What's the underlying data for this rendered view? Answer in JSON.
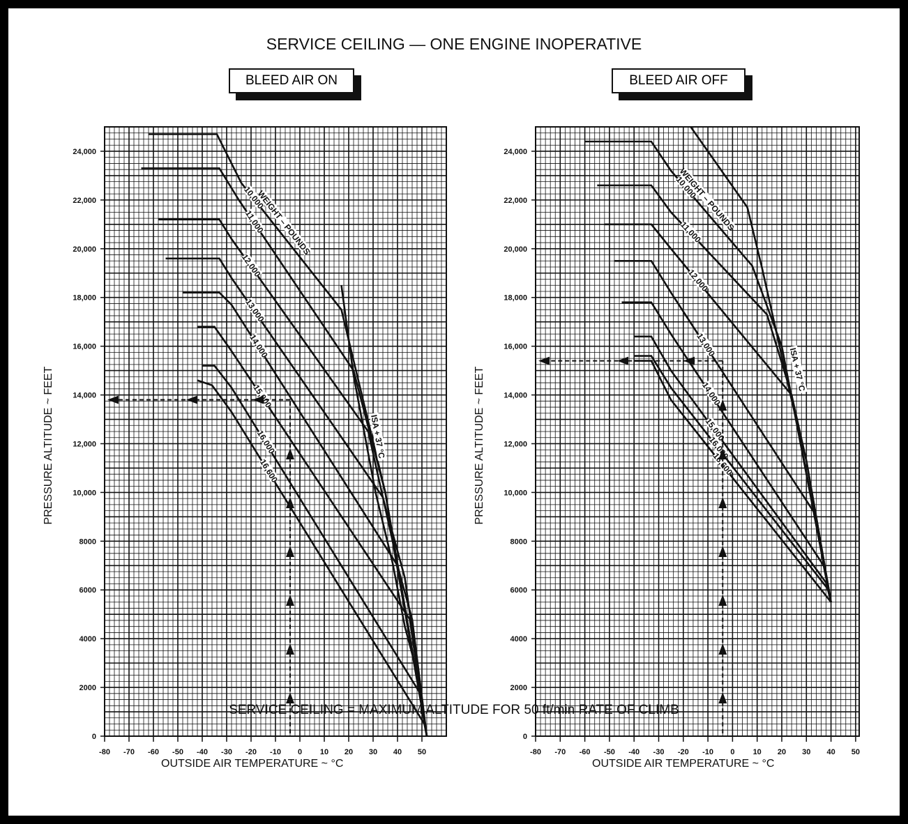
{
  "title": "SERVICE CEILING — ONE ENGINE INOPERATIVE",
  "footer_note": "SERVICE CEILING = MAXIMUM ALTITUDE FOR 50 ft/min RATE OF CLIMB",
  "colors": {
    "background": "#000000",
    "panel": "#ffffff",
    "ink": "#111111"
  },
  "chart_data": [
    {
      "type": "line",
      "title": "BLEED AIR ON",
      "xlabel": "OUTSIDE AIR TEMPERATURE ~ °C",
      "ylabel": "PRESSURE ALTITUDE ~ FEET",
      "xlim": [
        -80,
        60
      ],
      "ylim": [
        0,
        25000
      ],
      "x_ticks": [
        "-80",
        "-70",
        "-60",
        "-50",
        "-40",
        "-30",
        "-20",
        "-10",
        "0",
        "10",
        "20",
        "30",
        "40",
        "50"
      ],
      "y_ticks": [
        "0",
        "2000",
        "4000",
        "6000",
        "8000",
        "10,000",
        "12,000",
        "14,000",
        "16,000",
        "18,000",
        "20,000",
        "22,000",
        "24,000"
      ],
      "grid": true,
      "annotations": [
        "WEIGHT – POUNDS",
        "ISA + 37 °C"
      ],
      "series": [
        {
          "name": "10,000",
          "points": [
            [
              -62,
              24700
            ],
            [
              -34,
              24700
            ],
            [
              -24,
              22700
            ],
            [
              17,
              17500
            ],
            [
              35,
              10000
            ],
            [
              52,
              0
            ]
          ]
        },
        {
          "name": "11,000",
          "points": [
            [
              -65,
              23300
            ],
            [
              -33,
              23300
            ],
            [
              -25,
              22000
            ],
            [
              22,
              15000
            ],
            [
              35,
              10000
            ],
            [
              52,
              0
            ]
          ]
        },
        {
          "name": "12,000",
          "points": [
            [
              -58,
              21200
            ],
            [
              -33,
              21200
            ],
            [
              -28,
              20400
            ],
            [
              28,
              12500
            ],
            [
              38,
              8000
            ],
            [
              52,
              0
            ]
          ]
        },
        {
          "name": "13,000",
          "points": [
            [
              -55,
              19600
            ],
            [
              -33,
              19600
            ],
            [
              -28,
              18800
            ],
            [
              34,
              9800
            ],
            [
              43,
              6500
            ],
            [
              52,
              0
            ]
          ]
        },
        {
          "name": "14,000",
          "points": [
            [
              -48,
              18200
            ],
            [
              -33,
              18200
            ],
            [
              -28,
              17700
            ],
            [
              40,
              7000
            ],
            [
              46,
              4800
            ],
            [
              52,
              0
            ]
          ]
        },
        {
          "name": "15,000",
          "points": [
            [
              -42,
              16800
            ],
            [
              -35,
              16800
            ],
            [
              -28,
              15800
            ],
            [
              45,
              4800
            ],
            [
              52,
              0
            ]
          ]
        },
        {
          "name": "16,000",
          "points": [
            [
              -40,
              15200
            ],
            [
              -35,
              15200
            ],
            [
              -28,
              14300
            ],
            [
              49,
              1800
            ],
            [
              52,
              0
            ]
          ]
        },
        {
          "name": "16,600",
          "points": [
            [
              -42,
              14600
            ],
            [
              -36,
              14400
            ],
            [
              -28,
              13300
            ],
            [
              51,
              500
            ],
            [
              52,
              0
            ]
          ]
        },
        {
          "name": "ISA + 37 °C",
          "points": [
            [
              17,
              18500
            ],
            [
              22,
              14800
            ],
            [
              31,
              10000
            ],
            [
              38,
              7100
            ],
            [
              43,
              4500
            ],
            [
              47,
              3000
            ],
            [
              52,
              0
            ]
          ]
        }
      ],
      "example_path": {
        "oat_c": -4,
        "pressure_altitude_ft": 13800
      }
    },
    {
      "type": "line",
      "title": "BLEED AIR OFF",
      "xlabel": "OUTSIDE AIR TEMPERATURE ~ °C",
      "ylabel": "PRESSURE ALTITUDE ~ FEET",
      "xlim": [
        -80,
        50
      ],
      "ylim": [
        0,
        25000
      ],
      "x_ticks": [
        "-80",
        "-70",
        "-60",
        "-50",
        "-40",
        "-30",
        "-20",
        "-10",
        "0",
        "10",
        "20",
        "30",
        "40",
        "50"
      ],
      "y_ticks": [
        "0",
        "2000",
        "4000",
        "6000",
        "8000",
        "10,000",
        "12,000",
        "14,000",
        "16,000",
        "18,000",
        "20,000",
        "22,000",
        "24,000"
      ],
      "grid": true,
      "annotations": [
        "WEIGHT – POUNDS",
        "ISA + 37 °C"
      ],
      "series": [
        {
          "name": "10,000",
          "points": [
            [
              -60,
              24400
            ],
            [
              -33,
              24400
            ],
            [
              -25,
              23200
            ],
            [
              8,
              19300
            ],
            [
              20,
              16000
            ],
            [
              40,
              5500
            ]
          ]
        },
        {
          "name": "11,000",
          "points": [
            [
              -55,
              22600
            ],
            [
              -33,
              22600
            ],
            [
              -25,
              21500
            ],
            [
              14,
              17300
            ],
            [
              24,
              14000
            ],
            [
              40,
              5500
            ]
          ]
        },
        {
          "name": "12,000",
          "points": [
            [
              -52,
              21000
            ],
            [
              -33,
              21000
            ],
            [
              -25,
              20000
            ],
            [
              24,
              14000
            ],
            [
              30,
              11300
            ],
            [
              40,
              5500
            ]
          ]
        },
        {
          "name": "13,000",
          "points": [
            [
              -48,
              19500
            ],
            [
              -33,
              19500
            ],
            [
              -25,
              18200
            ],
            [
              33,
              9200
            ],
            [
              40,
              5500
            ]
          ]
        },
        {
          "name": "14,000",
          "points": [
            [
              -45,
              17800
            ],
            [
              -33,
              17800
            ],
            [
              -25,
              16500
            ],
            [
              37,
              7000
            ],
            [
              40,
              5500
            ]
          ]
        },
        {
          "name": "15,000",
          "points": [
            [
              -40,
              16400
            ],
            [
              -33,
              16400
            ],
            [
              -25,
              15000
            ],
            [
              38,
              6300
            ],
            [
              40,
              5500
            ]
          ]
        },
        {
          "name": "16,000",
          "points": [
            [
              -40,
              15600
            ],
            [
              -33,
              15600
            ],
            [
              -25,
              14300
            ],
            [
              39,
              6000
            ],
            [
              40,
              5500
            ]
          ]
        },
        {
          "name": "16,600",
          "points": [
            [
              -40,
              15400
            ],
            [
              -33,
              15400
            ],
            [
              -25,
              13800
            ],
            [
              40,
              5500
            ]
          ]
        },
        {
          "name": "ISA + 37 °C",
          "points": [
            [
              -17,
              25000
            ],
            [
              6,
              21700
            ],
            [
              12,
              19200
            ],
            [
              18,
              16500
            ],
            [
              24,
              13800
            ],
            [
              30,
              11300
            ],
            [
              34,
              9000
            ],
            [
              40,
              5500
            ]
          ]
        }
      ],
      "example_path": {
        "oat_c": -4,
        "pressure_altitude_ft": 15400
      }
    }
  ]
}
